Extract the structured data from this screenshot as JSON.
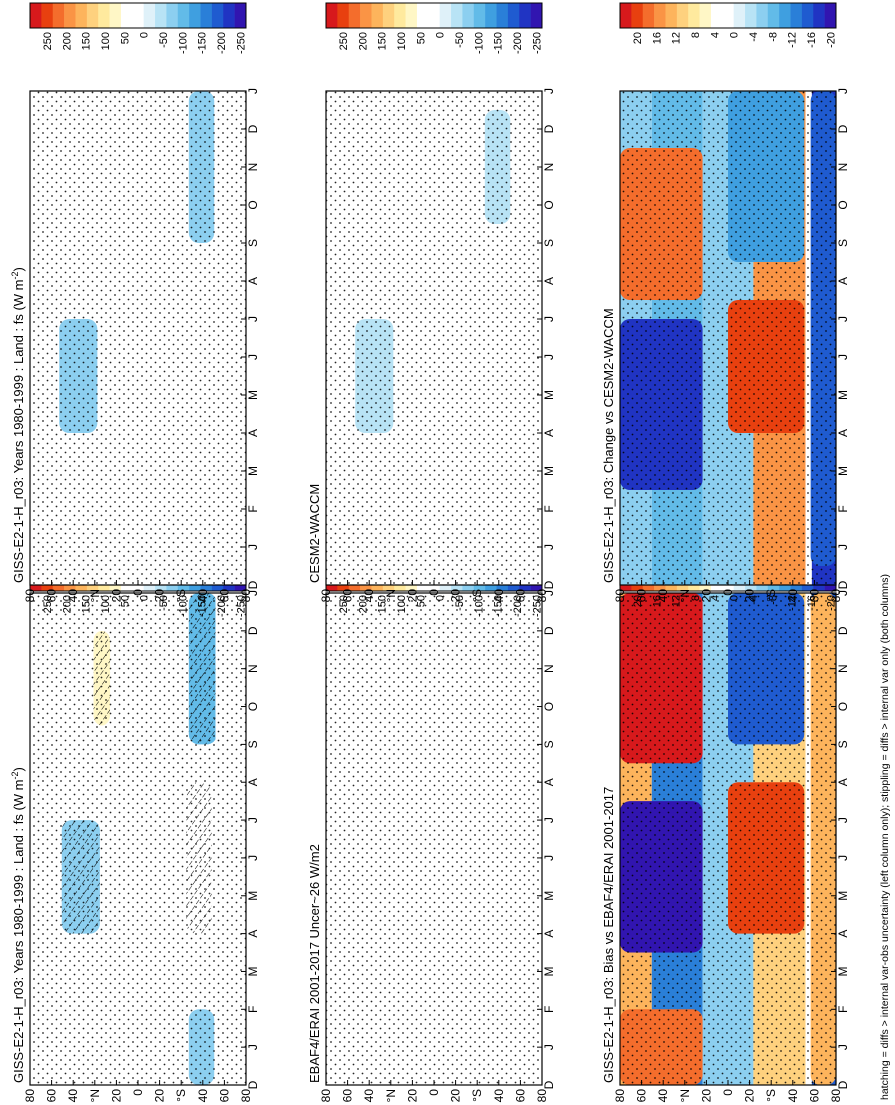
{
  "figure": {
    "footnote": "hatching = diffs > internal var-obs uncertainty (left column only); stippling = diffs > internal var only (both columns)"
  },
  "chart_data": [
    {
      "type": "heatmap",
      "id": "p1",
      "title": "GISS-E2-1-H_r03: Years 1980-1999 : Land : fs (W m",
      "title_units_sup": "-2",
      "title_end": ")",
      "latitude_ticks": [
        "80",
        "60",
        "40",
        "°N",
        "20",
        "0",
        "20",
        "°S",
        "40",
        "60",
        "80"
      ],
      "month_ticks": [
        "D",
        "J",
        "F",
        "M",
        "A",
        "M",
        "J",
        "J",
        "A",
        "S",
        "O",
        "N",
        "D",
        "J"
      ],
      "colorbar": {
        "ticks": [
          "250",
          "200",
          "150",
          "100",
          "50",
          "0",
          "-50",
          "-100",
          "-150",
          "-200",
          "-250"
        ],
        "range": [
          -275,
          275
        ]
      },
      "features": [
        {
          "lat": [
            60,
            30
          ],
          "months": [
            3.5,
            6.5
          ],
          "value": -90,
          "hatched": true
        },
        {
          "lat": [
            -38,
            -58
          ],
          "months": [
            3.5,
            7.5
          ],
          "value": 40,
          "hatched": true
        },
        {
          "lat": [
            -40,
            -62
          ],
          "months": [
            8.5,
            12.5
          ],
          "value": -110,
          "hatched": true
        },
        {
          "lat": [
            35,
            22
          ],
          "months": [
            9,
            11.5
          ],
          "value": 45,
          "hatched": true
        },
        {
          "lat": [
            -40,
            -60
          ],
          "months": [
            -0.5,
            1.5
          ],
          "value": -100,
          "hatched": false
        }
      ]
    },
    {
      "type": "heatmap",
      "id": "p2",
      "title": "EBAF4/ERAI 2001-2017 Uncer~26 W/m2",
      "latitude_ticks": [
        "80",
        "60",
        "40",
        "°N",
        "20",
        "0",
        "20",
        "°S",
        "40",
        "60",
        "80"
      ],
      "month_ticks": [
        "D",
        "J",
        "F",
        "M",
        "A",
        "M",
        "J",
        "J",
        "A",
        "S",
        "O",
        "N",
        "D",
        "J"
      ],
      "colorbar": {
        "ticks": [
          "250",
          "200",
          "150",
          "100",
          "50",
          "0",
          "-50",
          "-100",
          "-150",
          "-200",
          "-250"
        ],
        "range": [
          -275,
          275
        ]
      }
    },
    {
      "type": "heatmap",
      "id": "p3",
      "title": "GISS-E2-1-H_r03: Bias vs EBAF4/ERAI 2001-2017",
      "latitude_ticks": [
        "80",
        "60",
        "40",
        "°N",
        "20",
        "0",
        "20",
        "°S",
        "40",
        "60",
        "80"
      ],
      "month_ticks": [
        "D",
        "J",
        "F",
        "M",
        "A",
        "M",
        "J",
        "J",
        "A",
        "S",
        "O",
        "N",
        "D",
        "J"
      ],
      "colorbar": {
        "ticks": [
          "20",
          "16",
          "12",
          "8",
          "4",
          "0",
          "-4",
          "-8",
          "-12",
          "-16",
          "-20"
        ],
        "range": [
          -22,
          22
        ]
      },
      "features": [
        {
          "lat": [
            85,
            20
          ],
          "months": [
            3,
            7
          ],
          "value": -20
        },
        {
          "lat": [
            85,
            20
          ],
          "months": [
            8,
            12.5
          ],
          "value": 20
        },
        {
          "lat": [
            85,
            20
          ],
          "months": [
            -0.5,
            1.5
          ],
          "value": 16
        },
        {
          "lat": [
            0,
            -60
          ],
          "months": [
            3.5,
            7.5
          ],
          "value": 18
        },
        {
          "lat": [
            0,
            -60
          ],
          "months": [
            8.5,
            12.5
          ],
          "value": -16
        },
        {
          "lat": [
            -65,
            -85
          ],
          "months": [
            -0.5,
            12.5
          ],
          "value": 12
        }
      ]
    },
    {
      "type": "heatmap",
      "id": "p4",
      "title": "GISS-E2-1-H_r03: Years 1980-1999 : Land : fs (W m",
      "title_units_sup": "-2",
      "title_end": ")",
      "latitude_ticks": [
        "80",
        "60",
        "40",
        "°N",
        "20",
        "0",
        "20",
        "°S",
        "40",
        "60",
        "80"
      ],
      "month_ticks": [
        "D",
        "J",
        "F",
        "M",
        "A",
        "M",
        "J",
        "J",
        "A",
        "S",
        "O",
        "N",
        "D",
        "J"
      ],
      "colorbar": {
        "ticks": [
          "250",
          "200",
          "150",
          "100",
          "50",
          "0",
          "-50",
          "-100",
          "-150",
          "-200",
          "-250"
        ],
        "range": [
          -275,
          275
        ]
      },
      "features": [
        {
          "lat": [
            62,
            32
          ],
          "months": [
            3.5,
            6.5
          ],
          "value": -80
        },
        {
          "lat": [
            -40,
            -58
          ],
          "months": [
            3.5,
            7.5
          ],
          "value": 30
        },
        {
          "lat": [
            -40,
            -60
          ],
          "months": [
            8.5,
            12.5
          ],
          "value": -100
        },
        {
          "lat": [
            35,
            22
          ],
          "months": [
            9,
            11.5
          ],
          "value": 40
        }
      ]
    },
    {
      "type": "heatmap",
      "id": "p5",
      "title": "CESM2-WACCM",
      "latitude_ticks": [
        "80",
        "60",
        "40",
        "°N",
        "20",
        "0",
        "20",
        "°S",
        "40",
        "60",
        "80"
      ],
      "month_ticks": [
        "D",
        "J",
        "F",
        "M",
        "A",
        "M",
        "J",
        "J",
        "A",
        "S",
        "O",
        "N",
        "D",
        "J"
      ],
      "colorbar": {
        "ticks": [
          "250",
          "200",
          "150",
          "100",
          "50",
          "0",
          "-50",
          "-100",
          "-150",
          "-200",
          "-250"
        ],
        "range": [
          -275,
          275
        ]
      },
      "features": [
        {
          "lat": [
            62,
            32
          ],
          "months": [
            3.5,
            6.5
          ],
          "value": -70
        },
        {
          "lat": [
            -40,
            -58
          ],
          "months": [
            4,
            7.5
          ],
          "value": 25
        },
        {
          "lat": [
            -40,
            -60
          ],
          "months": [
            9,
            12
          ],
          "value": -70
        }
      ]
    },
    {
      "type": "heatmap",
      "id": "p6",
      "title": "GISS-E2-1-H_r03: Change vs CESM2-WACCM",
      "latitude_ticks": [
        "80",
        "60",
        "40",
        "°N",
        "20",
        "0",
        "20",
        "°S",
        "40",
        "60",
        "80"
      ],
      "month_ticks": [
        "D",
        "J",
        "F",
        "M",
        "A",
        "M",
        "J",
        "J",
        "A",
        "S",
        "O",
        "N",
        "D",
        "J"
      ],
      "colorbar": {
        "ticks": [
          "20",
          "16",
          "12",
          "8",
          "4",
          "0",
          "-4",
          "-8",
          "-12",
          "-16",
          "-20"
        ],
        "range": [
          -22,
          22
        ]
      },
      "features": [
        {
          "lat": [
            85,
            20
          ],
          "months": [
            2,
            6.5
          ],
          "value": -18
        },
        {
          "lat": [
            85,
            20
          ],
          "months": [
            7,
            11
          ],
          "value": 16
        },
        {
          "lat": [
            0,
            -60
          ],
          "months": [
            3.5,
            7
          ],
          "value": 18
        },
        {
          "lat": [
            0,
            -60
          ],
          "months": [
            8,
            12.5
          ],
          "value": -12
        },
        {
          "lat": [
            -65,
            -85
          ],
          "months": [
            0,
            12.5
          ],
          "value": -16
        }
      ]
    }
  ]
}
